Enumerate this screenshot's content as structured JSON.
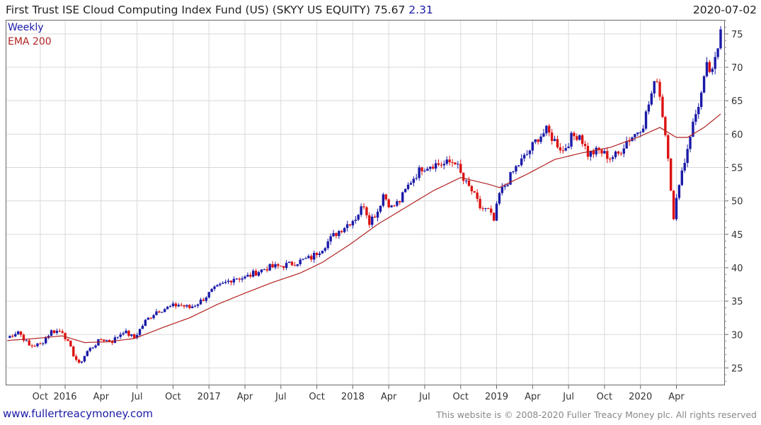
{
  "header": {
    "title": "First Trust ISE Cloud Computing Index Fund (US) (SKYY US EQUITY) 75.67",
    "change": "2.31",
    "date": "2020-07-02"
  },
  "legend": {
    "series_label": "Weekly",
    "ema_label": "EMA 200"
  },
  "footer": {
    "site": "www.fullertreacymoney.com",
    "copyright": "This website is © 2008-2020 Fuller Treacy Money plc. All rights reserved"
  },
  "colors": {
    "up": "#1a1aa8",
    "down": "#dd1111",
    "ema": "#b22222",
    "grid": "#d9d9d9"
  },
  "chart_data": {
    "type": "line",
    "ylim": [
      22.5,
      77
    ],
    "y_ticks": [
      25,
      30,
      35,
      40,
      45,
      50,
      55,
      60,
      65,
      70,
      75
    ],
    "x_ticks": [
      {
        "label": "Oct",
        "week": 12
      },
      {
        "label": "2016",
        "week": 21
      },
      {
        "label": "Apr",
        "week": 34
      },
      {
        "label": "Jul",
        "week": 47
      },
      {
        "label": "Oct",
        "week": 60
      },
      {
        "label": "2017",
        "week": 73
      },
      {
        "label": "Apr",
        "week": 86
      },
      {
        "label": "Jul",
        "week": 99
      },
      {
        "label": "Oct",
        "week": 112
      },
      {
        "label": "2018",
        "week": 125
      },
      {
        "label": "Apr",
        "week": 138
      },
      {
        "label": "Jul",
        "week": 151
      },
      {
        "label": "Oct",
        "week": 164
      },
      {
        "label": "2019",
        "week": 177
      },
      {
        "label": "Apr",
        "week": 190
      },
      {
        "label": "Jul",
        "week": 203
      },
      {
        "label": "Oct",
        "week": 216
      },
      {
        "label": "2020",
        "week": 229
      },
      {
        "label": "Apr",
        "week": 242
      }
    ],
    "weekly_close_anchors": [
      {
        "week": 0,
        "value": 29.5
      },
      {
        "week": 4,
        "value": 30.5
      },
      {
        "week": 8,
        "value": 28.3
      },
      {
        "week": 12,
        "value": 28.5
      },
      {
        "week": 16,
        "value": 30.5
      },
      {
        "week": 20,
        "value": 30.5
      },
      {
        "week": 24,
        "value": 27.0
      },
      {
        "week": 26,
        "value": 25.5
      },
      {
        "week": 29,
        "value": 27.5
      },
      {
        "week": 34,
        "value": 29.3
      },
      {
        "week": 38,
        "value": 29.0
      },
      {
        "week": 42,
        "value": 30.5
      },
      {
        "week": 46,
        "value": 29.5
      },
      {
        "week": 50,
        "value": 32.0
      },
      {
        "week": 54,
        "value": 33.5
      },
      {
        "week": 58,
        "value": 34.0
      },
      {
        "week": 62,
        "value": 34.5
      },
      {
        "week": 66,
        "value": 34.0
      },
      {
        "week": 70,
        "value": 35.0
      },
      {
        "week": 74,
        "value": 36.5
      },
      {
        "week": 78,
        "value": 37.5
      },
      {
        "week": 82,
        "value": 38.5
      },
      {
        "week": 86,
        "value": 38.5
      },
      {
        "week": 90,
        "value": 39.3
      },
      {
        "week": 94,
        "value": 40.0
      },
      {
        "week": 98,
        "value": 40.2
      },
      {
        "week": 102,
        "value": 40.5
      },
      {
        "week": 106,
        "value": 41.0
      },
      {
        "week": 110,
        "value": 41.5
      },
      {
        "week": 114,
        "value": 43.0
      },
      {
        "week": 118,
        "value": 44.8
      },
      {
        "week": 122,
        "value": 46.2
      },
      {
        "week": 126,
        "value": 47.5
      },
      {
        "week": 129,
        "value": 49.5
      },
      {
        "week": 131,
        "value": 47.0
      },
      {
        "week": 134,
        "value": 48.5
      },
      {
        "week": 136,
        "value": 51.0
      },
      {
        "week": 139,
        "value": 49.0
      },
      {
        "week": 142,
        "value": 50.0
      },
      {
        "week": 146,
        "value": 53.0
      },
      {
        "week": 150,
        "value": 55.0
      },
      {
        "week": 154,
        "value": 55.5
      },
      {
        "week": 158,
        "value": 55.5
      },
      {
        "week": 162,
        "value": 56.0
      },
      {
        "week": 165,
        "value": 53.0
      },
      {
        "week": 168,
        "value": 51.5
      },
      {
        "week": 171,
        "value": 49.0
      },
      {
        "week": 174,
        "value": 48.5
      },
      {
        "week": 176,
        "value": 47.0
      },
      {
        "week": 178,
        "value": 51.0
      },
      {
        "week": 181,
        "value": 53.0
      },
      {
        "week": 184,
        "value": 55.0
      },
      {
        "week": 188,
        "value": 57.0
      },
      {
        "week": 192,
        "value": 59.5
      },
      {
        "week": 195,
        "value": 60.5
      },
      {
        "week": 198,
        "value": 59.0
      },
      {
        "week": 201,
        "value": 57.5
      },
      {
        "week": 204,
        "value": 59.5
      },
      {
        "week": 207,
        "value": 60.0
      },
      {
        "week": 210,
        "value": 57.0
      },
      {
        "week": 214,
        "value": 57.5
      },
      {
        "week": 218,
        "value": 56.5
      },
      {
        "week": 221,
        "value": 57.0
      },
      {
        "week": 224,
        "value": 59.0
      },
      {
        "week": 227,
        "value": 60.0
      },
      {
        "week": 230,
        "value": 61.5
      },
      {
        "week": 233,
        "value": 66.0
      },
      {
        "week": 235,
        "value": 68.5
      },
      {
        "week": 237,
        "value": 63.0
      },
      {
        "week": 239,
        "value": 57.0
      },
      {
        "week": 241,
        "value": 47.0
      },
      {
        "week": 243,
        "value": 53.0
      },
      {
        "week": 245,
        "value": 56.0
      },
      {
        "week": 247,
        "value": 60.0
      },
      {
        "week": 249,
        "value": 63.0
      },
      {
        "week": 251,
        "value": 66.0
      },
      {
        "week": 253,
        "value": 70.0
      },
      {
        "week": 255,
        "value": 69.0
      },
      {
        "week": 257,
        "value": 73.0
      },
      {
        "week": 258,
        "value": 75.67
      }
    ],
    "ema_anchors": [
      {
        "week": 0,
        "value": 29.1
      },
      {
        "week": 10,
        "value": 29.4
      },
      {
        "week": 20,
        "value": 29.8
      },
      {
        "week": 28,
        "value": 28.8
      },
      {
        "week": 36,
        "value": 28.9
      },
      {
        "week": 46,
        "value": 29.4
      },
      {
        "week": 56,
        "value": 31.0
      },
      {
        "week": 66,
        "value": 32.5
      },
      {
        "week": 76,
        "value": 34.5
      },
      {
        "week": 86,
        "value": 36.2
      },
      {
        "week": 96,
        "value": 37.8
      },
      {
        "week": 106,
        "value": 39.2
      },
      {
        "week": 114,
        "value": 40.8
      },
      {
        "week": 124,
        "value": 43.5
      },
      {
        "week": 134,
        "value": 46.5
      },
      {
        "week": 144,
        "value": 49.0
      },
      {
        "week": 154,
        "value": 51.5
      },
      {
        "week": 164,
        "value": 53.5
      },
      {
        "week": 174,
        "value": 52.5
      },
      {
        "week": 178,
        "value": 52.0
      },
      {
        "week": 188,
        "value": 54.0
      },
      {
        "week": 198,
        "value": 56.2
      },
      {
        "week": 208,
        "value": 57.2
      },
      {
        "week": 218,
        "value": 58.0
      },
      {
        "week": 228,
        "value": 59.5
      },
      {
        "week": 236,
        "value": 61.0
      },
      {
        "week": 242,
        "value": 59.5
      },
      {
        "week": 246,
        "value": 59.5
      },
      {
        "week": 252,
        "value": 61.0
      },
      {
        "week": 258,
        "value": 63.0
      }
    ],
    "total_weeks": 258
  }
}
